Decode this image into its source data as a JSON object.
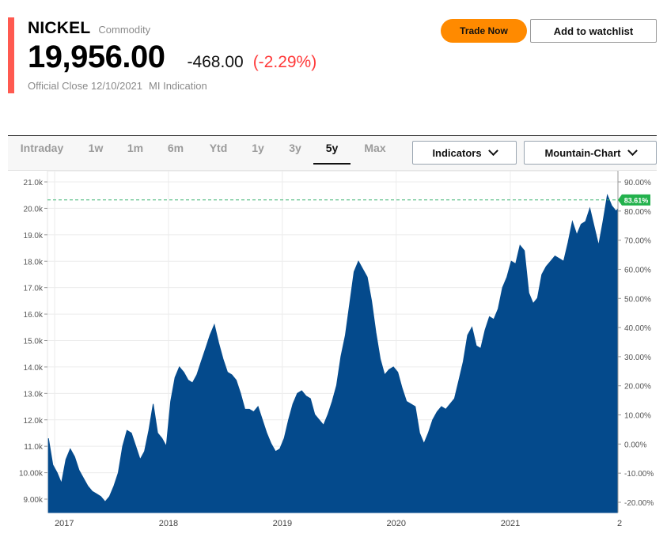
{
  "header": {
    "symbol": "NICKEL",
    "asset_type": "Commodity",
    "price": "19,956.00",
    "change": "-468.00",
    "change_pct": "(-2.29%)",
    "close_label": "Official Close 12/10/2021",
    "indication": "MI Indication",
    "accent_color": "#ff5a50"
  },
  "actions": {
    "trade_label": "Trade Now",
    "watchlist_label": "Add to watchlist",
    "trade_color": "#ff8a00"
  },
  "range_tabs": [
    {
      "label": "Intraday",
      "active": false
    },
    {
      "label": "1w",
      "active": false
    },
    {
      "label": "1m",
      "active": false
    },
    {
      "label": "6m",
      "active": false
    },
    {
      "label": "Ytd",
      "active": false
    },
    {
      "label": "1y",
      "active": false
    },
    {
      "label": "3y",
      "active": false
    },
    {
      "label": "5y",
      "active": true
    },
    {
      "label": "Max",
      "active": false
    }
  ],
  "dropdowns": {
    "indicators_label": "Indicators",
    "chart_type_label": "Mountain-Chart"
  },
  "chart_data": {
    "type": "area",
    "title": "",
    "xlabel": "",
    "ylabel": "",
    "fill_color": "#044a8c",
    "reference_line_color": "#3cb371",
    "x_tick_labels": [
      "2017",
      "2018",
      "2019",
      "2020",
      "2021",
      "2"
    ],
    "y_left_ticks": [
      "21.0k",
      "20.0k",
      "19.0k",
      "18.0k",
      "17.0k",
      "16.0k",
      "15.0k",
      "14.0k",
      "13.0k",
      "12.0k",
      "11.0k",
      "10.00k",
      "9.00k"
    ],
    "y_right_ticks": [
      "90.00%",
      "80.00%",
      "70.00%",
      "60.00%",
      "50.00%",
      "40.00%",
      "30.00%",
      "20.00%",
      "10.00%",
      "0.00%",
      "-10.00%",
      "-20.00%"
    ],
    "ylim": [
      8600,
      21200
    ],
    "right_ylim": [
      -22,
      91
    ],
    "reference_value": 20320,
    "reference_label": "83.61%",
    "grid": true,
    "series": [
      {
        "x": [
          "2016-12-12",
          "2016-12-26",
          "2017-01-09",
          "2017-01-23",
          "2017-02-06",
          "2017-02-20",
          "2017-03-06",
          "2017-03-20",
          "2017-04-03",
          "2017-04-17",
          "2017-05-01",
          "2017-05-15",
          "2017-05-29",
          "2017-06-12",
          "2017-06-26",
          "2017-07-10",
          "2017-07-24",
          "2017-08-07",
          "2017-08-21",
          "2017-09-04",
          "2017-09-18",
          "2017-10-02",
          "2017-10-16",
          "2017-10-30",
          "2017-11-13",
          "2017-11-27",
          "2017-12-11",
          "2017-12-25",
          "2018-01-08",
          "2018-01-22",
          "2018-02-05",
          "2018-02-19",
          "2018-03-05",
          "2018-03-19",
          "2018-04-02",
          "2018-04-16",
          "2018-04-30",
          "2018-05-14",
          "2018-05-28",
          "2018-06-11",
          "2018-06-25",
          "2018-07-09",
          "2018-07-23",
          "2018-08-06",
          "2018-08-20",
          "2018-09-03",
          "2018-09-17",
          "2018-10-01",
          "2018-10-15",
          "2018-10-29",
          "2018-11-12",
          "2018-11-26",
          "2018-12-10",
          "2018-12-24",
          "2019-01-07",
          "2019-01-21",
          "2019-02-04",
          "2019-02-18",
          "2019-03-04",
          "2019-03-18",
          "2019-04-01",
          "2019-04-15",
          "2019-04-29",
          "2019-05-13",
          "2019-05-27",
          "2019-06-10",
          "2019-06-24",
          "2019-07-08",
          "2019-07-22",
          "2019-08-05",
          "2019-08-19",
          "2019-09-02",
          "2019-09-16",
          "2019-09-30",
          "2019-10-14",
          "2019-10-28",
          "2019-11-11",
          "2019-11-25",
          "2019-12-09",
          "2019-12-23",
          "2020-01-06",
          "2020-01-20",
          "2020-02-03",
          "2020-02-17",
          "2020-03-02",
          "2020-03-16",
          "2020-03-30",
          "2020-04-13",
          "2020-04-27",
          "2020-05-11",
          "2020-05-25",
          "2020-06-08",
          "2020-06-22",
          "2020-07-06",
          "2020-07-20",
          "2020-08-03",
          "2020-08-17",
          "2020-08-31",
          "2020-09-14",
          "2020-09-28",
          "2020-10-12",
          "2020-10-26",
          "2020-11-09",
          "2020-11-23",
          "2020-12-07",
          "2020-12-21",
          "2021-01-04",
          "2021-01-18",
          "2021-02-01",
          "2021-02-15",
          "2021-03-01",
          "2021-03-15",
          "2021-03-29",
          "2021-04-12",
          "2021-04-26",
          "2021-05-10",
          "2021-05-24",
          "2021-06-07",
          "2021-06-21",
          "2021-07-05",
          "2021-07-19",
          "2021-08-02",
          "2021-08-16",
          "2021-08-30",
          "2021-09-13",
          "2021-09-27",
          "2021-10-11",
          "2021-10-25",
          "2021-11-08",
          "2021-11-22",
          "2021-12-06",
          "2021-12-10"
        ],
        "values": [
          11300,
          10300,
          10000,
          9600,
          10500,
          10900,
          10600,
          10100,
          9800,
          9500,
          9300,
          9200,
          9100,
          8900,
          9100,
          9500,
          10000,
          11000,
          11600,
          11500,
          11000,
          10500,
          10800,
          11600,
          12600,
          11500,
          11300,
          11000,
          12700,
          13600,
          14000,
          13800,
          13500,
          13400,
          13700,
          14200,
          14700,
          15200,
          15600,
          14900,
          14300,
          13800,
          13700,
          13500,
          13000,
          12400,
          12400,
          12300,
          12500,
          12000,
          11500,
          11100,
          10800,
          10900,
          11300,
          12000,
          12600,
          13000,
          13100,
          12900,
          12800,
          12200,
          12000,
          11800,
          12200,
          12700,
          13300,
          14400,
          15200,
          16400,
          17600,
          18000,
          17700,
          17400,
          16500,
          15300,
          14300,
          13700,
          13900,
          14000,
          13800,
          13200,
          12700,
          12600,
          12500,
          11500,
          11100,
          11500,
          12000,
          12300,
          12500,
          12400,
          12600,
          12800,
          13500,
          14200,
          15200,
          15500,
          14800,
          14700,
          15400,
          15900,
          15800,
          16200,
          17000,
          17400,
          18000,
          17900,
          18600,
          18400,
          16800,
          16400,
          16600,
          17500,
          17800,
          18000,
          18200,
          18100,
          18000,
          18700,
          19500,
          19000,
          19400,
          19500,
          20000,
          19300,
          18600,
          19500,
          20500,
          20100,
          19900,
          19956
        ]
      }
    ]
  }
}
